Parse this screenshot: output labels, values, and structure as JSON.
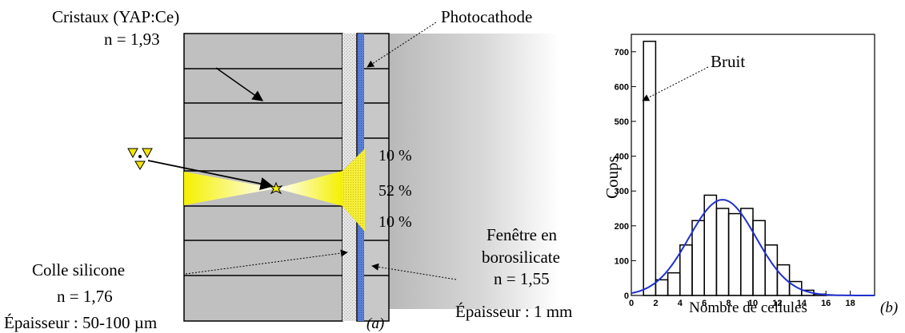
{
  "diagram": {
    "labels": {
      "cristaux": "Cristaux (YAP:Ce)",
      "cristaux_index": "n = 1,93",
      "photocathode": "Photocathode",
      "pct_top": "10 %",
      "pct_mid": "52 %",
      "pct_bot": "10 %",
      "colle": "Colle silicone",
      "colle_index": "n = 1,76",
      "colle_thickness": "Épaisseur : 50-100 µm",
      "fenetre_line1": "Fenêtre en",
      "fenetre_line2": "borosilicate",
      "fenetre_index": "n = 1,55",
      "fenetre_thickness": "Épaisseur : 1 mm",
      "panel_a": "(a)"
    },
    "colors": {
      "crystal": "#c0c0c0",
      "glue": "#dcdcdc",
      "photocathode": "#5b7fd6",
      "light_cone": "#f5f000",
      "radiation_symbol": "#f2e600"
    },
    "icons": [
      "radiation-icon",
      "flash-icon"
    ]
  },
  "chart_data": {
    "type": "histogram",
    "xlabel": "Nombre de cellules",
    "ylabel": "Coups",
    "panel_label": "(b)",
    "annotation": "Bruit",
    "xlim": [
      0,
      20
    ],
    "ylim": [
      0,
      750
    ],
    "x_ticks": [
      0,
      2,
      4,
      6,
      8,
      10,
      12,
      14,
      16,
      18
    ],
    "y_ticks": [
      0,
      100,
      200,
      300,
      400,
      500,
      600,
      700
    ],
    "bins": [
      {
        "x0": 1,
        "x1": 2,
        "count": 730
      },
      {
        "x0": 2,
        "x1": 3,
        "count": 45
      },
      {
        "x0": 3,
        "x1": 4,
        "count": 65
      },
      {
        "x0": 4,
        "x1": 5,
        "count": 145
      },
      {
        "x0": 5,
        "x1": 6,
        "count": 215
      },
      {
        "x0": 6,
        "x1": 7,
        "count": 288
      },
      {
        "x0": 7,
        "x1": 8,
        "count": 250
      },
      {
        "x0": 8,
        "x1": 9,
        "count": 235
      },
      {
        "x0": 9,
        "x1": 10,
        "count": 250
      },
      {
        "x0": 10,
        "x1": 11,
        "count": 215
      },
      {
        "x0": 11,
        "x1": 12,
        "count": 145
      },
      {
        "x0": 12,
        "x1": 13,
        "count": 88
      },
      {
        "x0": 13,
        "x1": 14,
        "count": 40
      },
      {
        "x0": 14,
        "x1": 15,
        "count": 15
      },
      {
        "x0": 15,
        "x1": 16,
        "count": 4
      },
      {
        "x0": 16,
        "x1": 17,
        "count": 0
      },
      {
        "x0": 17,
        "x1": 18,
        "count": 0
      },
      {
        "x0": 18,
        "x1": 19,
        "count": 0
      }
    ],
    "fit": {
      "type": "gaussian",
      "color": "#1f2fd0",
      "amplitude": 275,
      "mean": 7.5,
      "sigma": 2.75
    }
  }
}
